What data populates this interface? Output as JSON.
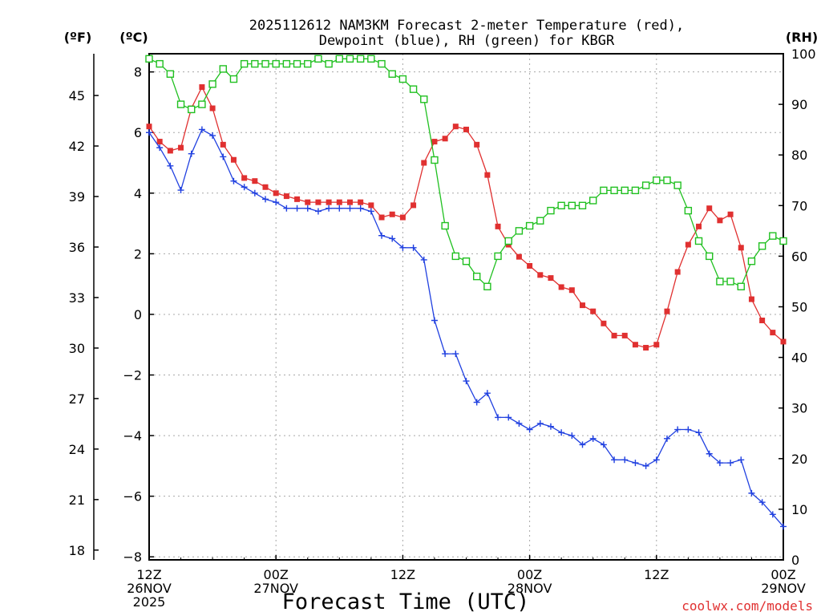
{
  "chart_data": {
    "type": "line",
    "title_line1": "2025112612 NAM3KM Forecast 2-meter Temperature (red),",
    "title_line2": "Dewpoint (blue), RH (green) for KBGR",
    "xlabel": "Forecast Time (UTC)",
    "credit": "coolwx.com/models",
    "units": {
      "fahrenheit": "(ºF)",
      "celsius": "(ºC)",
      "rh": "(RH)"
    },
    "x_hours_range": [
      0,
      60
    ],
    "x_ticks": [
      {
        "hour": 0,
        "label1": "12Z",
        "label2": "26NOV",
        "label3": "2025"
      },
      {
        "hour": 12,
        "label1": "00Z",
        "label2": "27NOV",
        "label3": ""
      },
      {
        "hour": 24,
        "label1": "12Z",
        "label2": "",
        "label3": ""
      },
      {
        "hour": 36,
        "label1": "00Z",
        "label2": "28NOV",
        "label3": ""
      },
      {
        "hour": 48,
        "label1": "12Z",
        "label2": "",
        "label3": ""
      },
      {
        "hour": 60,
        "label1": "00Z",
        "label2": "29NOV",
        "label3": ""
      }
    ],
    "celsius_range": [
      -8.1,
      8.6
    ],
    "celsius_ticks": [
      "8",
      "6",
      "4",
      "2",
      "0",
      "−2",
      "−4",
      "−6",
      "−8"
    ],
    "fahrenheit_ticks": [
      "45",
      "42",
      "39",
      "36",
      "33",
      "30",
      "27",
      "24",
      "21",
      "18"
    ],
    "rh_range": [
      0,
      100
    ],
    "rh_ticks": [
      "100",
      "90",
      "80",
      "70",
      "60",
      "50",
      "40",
      "30",
      "20",
      "10",
      "0"
    ],
    "series": [
      {
        "name": "2-meter Temperature (°C)",
        "color": "#e03030",
        "marker": "filled-square",
        "axis": "celsius",
        "values": [
          6.2,
          5.7,
          5.4,
          5.5,
          6.8,
          7.5,
          6.8,
          5.6,
          5.1,
          4.5,
          4.4,
          4.2,
          4.0,
          3.9,
          3.8,
          3.7,
          3.7,
          3.7,
          3.7,
          3.7,
          3.7,
          3.6,
          3.2,
          3.3,
          3.2,
          3.6,
          5.0,
          5.7,
          5.8,
          6.2,
          6.1,
          5.6,
          4.6,
          2.9,
          2.3,
          1.9,
          1.6,
          1.3,
          1.2,
          0.9,
          0.8,
          0.3,
          0.1,
          -0.3,
          -0.7,
          -0.7,
          -1.0,
          -1.1,
          -1.0,
          0.1,
          1.4,
          2.3,
          2.9,
          3.5,
          3.1,
          3.3,
          2.2,
          0.5,
          -0.2,
          -0.6,
          -0.9
        ]
      },
      {
        "name": "Dewpoint (°C)",
        "color": "#2040e0",
        "marker": "plus",
        "axis": "celsius",
        "values": [
          6.0,
          5.5,
          4.9,
          4.1,
          5.3,
          6.1,
          5.9,
          5.2,
          4.4,
          4.2,
          4.0,
          3.8,
          3.7,
          3.5,
          3.5,
          3.5,
          3.4,
          3.5,
          3.5,
          3.5,
          3.5,
          3.4,
          2.6,
          2.5,
          2.2,
          2.2,
          1.8,
          -0.2,
          -1.3,
          -1.3,
          -2.2,
          -2.9,
          -2.6,
          -3.4,
          -3.4,
          -3.6,
          -3.8,
          -3.6,
          -3.7,
          -3.9,
          -4.0,
          -4.3,
          -4.1,
          -4.3,
          -4.8,
          -4.8,
          -4.9,
          -5.0,
          -4.8,
          -4.1,
          -3.8,
          -3.8,
          -3.9,
          -4.6,
          -4.9,
          -4.9,
          -4.8,
          -5.9,
          -6.2,
          -6.6,
          -7.0
        ]
      },
      {
        "name": "Relative Humidity (%)",
        "color": "#20c020",
        "marker": "open-square",
        "axis": "rh",
        "values": [
          99,
          98,
          96,
          90,
          89,
          90,
          94,
          97,
          95,
          98,
          98,
          98,
          98,
          98,
          98,
          98,
          99,
          98,
          99,
          99,
          99,
          99,
          98,
          96,
          95,
          93,
          91,
          79,
          66,
          60,
          59,
          56,
          54,
          60,
          63,
          65,
          66,
          67,
          69,
          70,
          70,
          70,
          71,
          73,
          73,
          73,
          73,
          74,
          75,
          75,
          74,
          69,
          63,
          60,
          55,
          55,
          54,
          59,
          62,
          64,
          63
        ]
      }
    ]
  }
}
